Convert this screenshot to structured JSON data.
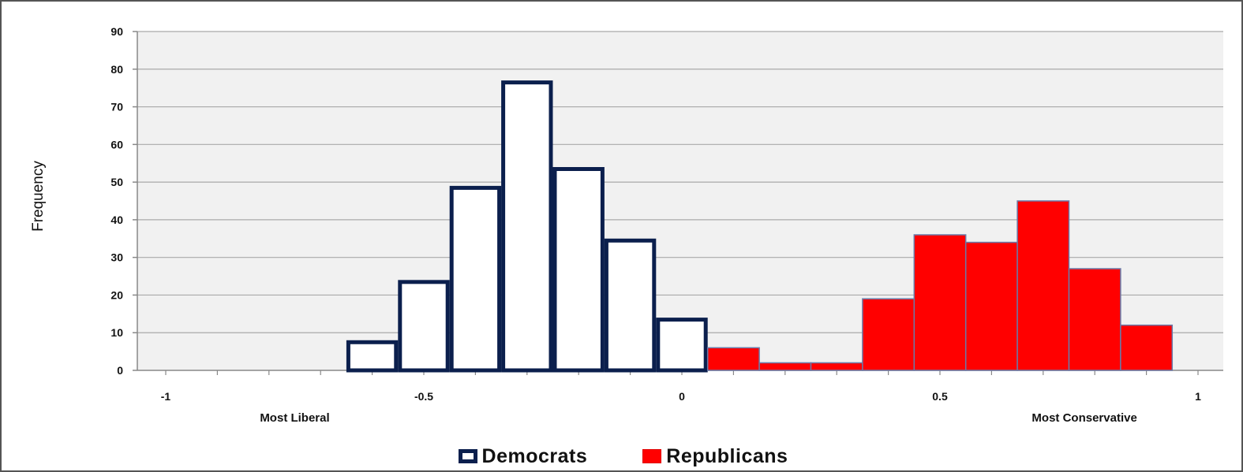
{
  "chart_data": {
    "type": "bar",
    "ylabel": "Frequency",
    "ylim": [
      0,
      90
    ],
    "yticks": [
      "0",
      "10",
      "20",
      "30",
      "40",
      "50",
      "60",
      "70",
      "80",
      "90"
    ],
    "xlim": [
      -1,
      1
    ],
    "xticks": [
      {
        "value": -1,
        "label": "-1"
      },
      {
        "value": -0.5,
        "label": "-0.5"
      },
      {
        "value": 0,
        "label": "0"
      },
      {
        "value": 0.5,
        "label": "0.5"
      },
      {
        "value": 1,
        "label": "1"
      }
    ],
    "x_annotations": [
      {
        "value": -0.75,
        "label": "Most Liberal"
      },
      {
        "value": 0.78,
        "label": "Most Conservative"
      }
    ],
    "grid": true,
    "legend_position": "bottom-center",
    "series": [
      {
        "name": "Democrats",
        "color": "#ffffff",
        "edge_color": "#0b1f4d",
        "bins": [
          {
            "x0": -0.65,
            "x1": -0.55,
            "value": 8
          },
          {
            "x0": -0.55,
            "x1": -0.45,
            "value": 24
          },
          {
            "x0": -0.45,
            "x1": -0.35,
            "value": 49
          },
          {
            "x0": -0.35,
            "x1": -0.25,
            "value": 77
          },
          {
            "x0": -0.25,
            "x1": -0.15,
            "value": 54
          },
          {
            "x0": -0.15,
            "x1": -0.05,
            "value": 35
          },
          {
            "x0": -0.05,
            "x1": 0.05,
            "value": 14
          }
        ]
      },
      {
        "name": "Republicans",
        "color": "#ff0000",
        "edge_color": "#6a7aa8",
        "bins": [
          {
            "x0": 0.05,
            "x1": 0.15,
            "value": 6
          },
          {
            "x0": 0.15,
            "x1": 0.25,
            "value": 2
          },
          {
            "x0": 0.25,
            "x1": 0.35,
            "value": 2
          },
          {
            "x0": 0.35,
            "x1": 0.45,
            "value": 19
          },
          {
            "x0": 0.45,
            "x1": 0.55,
            "value": 36
          },
          {
            "x0": 0.55,
            "x1": 0.65,
            "value": 34
          },
          {
            "x0": 0.65,
            "x1": 0.75,
            "value": 45
          },
          {
            "x0": 0.75,
            "x1": 0.85,
            "value": 27
          },
          {
            "x0": 0.85,
            "x1": 0.95,
            "value": 12
          }
        ]
      }
    ]
  }
}
